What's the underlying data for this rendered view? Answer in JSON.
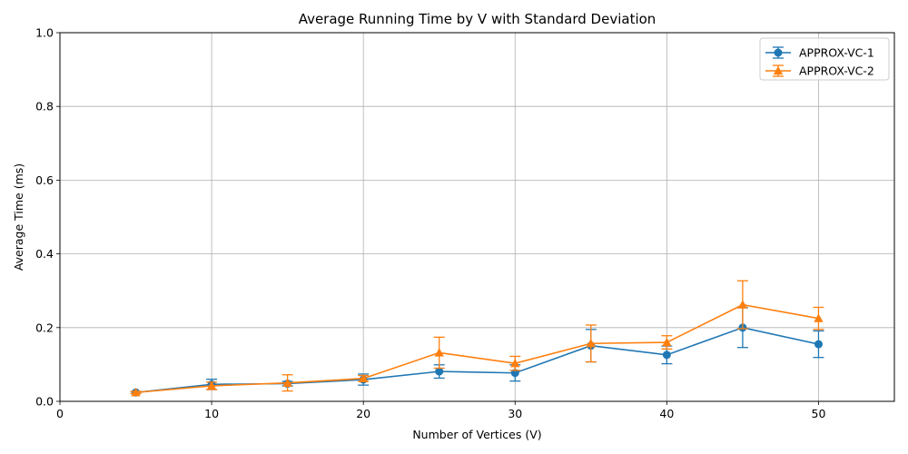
{
  "chart_data": {
    "type": "line",
    "title": "Average Running Time by V with Standard Deviation",
    "xlabel": "Number of Vertices (V)",
    "ylabel": "Average Time (ms)",
    "xlim": [
      0,
      55
    ],
    "ylim": [
      0,
      1.0
    ],
    "xticks": [
      "0",
      "10",
      "20",
      "30",
      "40",
      "50"
    ],
    "yticks": [
      "0.0",
      "0.2",
      "0.4",
      "0.6",
      "0.8",
      "1.0"
    ],
    "grid": true,
    "legend_position": "top-right",
    "x": [
      5,
      10,
      15,
      20,
      25,
      30,
      35,
      40,
      45,
      50
    ],
    "series": [
      {
        "name": "APPROX-VC-1",
        "color": "#1f77b4",
        "marker": "circle",
        "values": [
          0.024,
          0.046,
          0.048,
          0.059,
          0.081,
          0.077,
          0.151,
          0.126,
          0.2,
          0.155
        ],
        "error": [
          0.003,
          0.014,
          0.006,
          0.015,
          0.018,
          0.022,
          0.044,
          0.024,
          0.054,
          0.036
        ]
      },
      {
        "name": "APPROX-VC-2",
        "color": "#ff7f0e",
        "marker": "triangle",
        "values": [
          0.024,
          0.042,
          0.05,
          0.062,
          0.132,
          0.103,
          0.157,
          0.16,
          0.262,
          0.225
        ],
        "error": [
          0.003,
          0.01,
          0.022,
          0.008,
          0.042,
          0.019,
          0.05,
          0.018,
          0.065,
          0.03
        ]
      }
    ]
  }
}
